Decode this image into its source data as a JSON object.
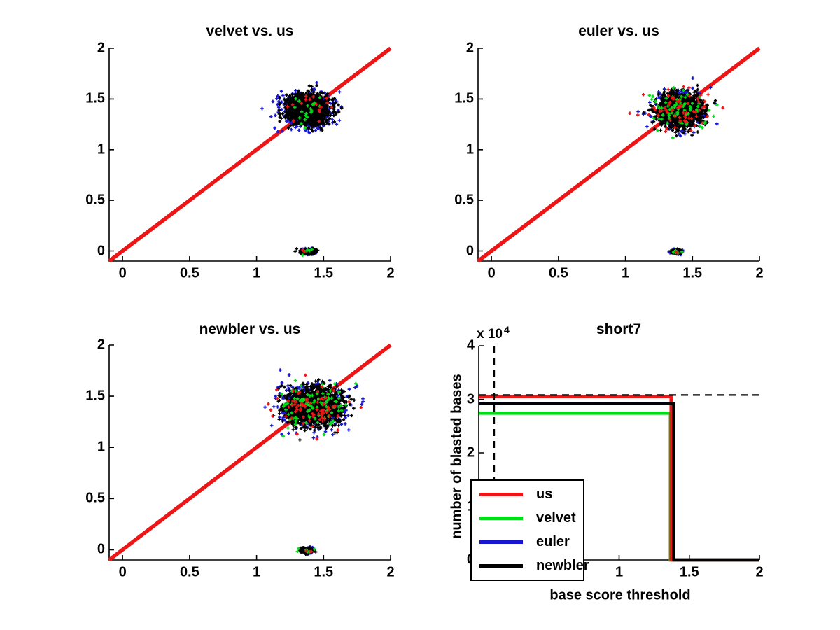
{
  "figure": {
    "background": "#ffffff"
  },
  "chart_data": [
    {
      "type": "scatter",
      "title": "velvet vs. us",
      "xlim": [
        -0.1,
        2
      ],
      "ylim": [
        -0.1,
        2
      ],
      "xtick_values": [
        0,
        0.5,
        1,
        1.5,
        2
      ],
      "xtick_labels": [
        "0",
        "0.5",
        "1",
        "1.5",
        "2"
      ],
      "ytick_values": [
        0,
        0.5,
        1,
        1.5,
        2
      ],
      "ytick_labels": [
        "0",
        "0.5",
        "1",
        "1.5",
        "2"
      ],
      "grid": false,
      "marker": "+",
      "identity_line": {
        "from": [
          -0.1,
          -0.1
        ],
        "to": [
          2,
          2
        ],
        "color": "#ed1515"
      },
      "clusters": [
        {
          "id": "main",
          "center": [
            1.38,
            1.4
          ],
          "layers": [
            {
              "color": "#1616d1",
              "n": 480,
              "sx": 0.1,
              "sy": 0.092
            },
            {
              "color": "#000000",
              "n": 1600,
              "sx": 0.075,
              "sy": 0.068
            },
            {
              "color": "#00dc16",
              "n": 20,
              "sx": 0.105,
              "sy": 0.095
            },
            {
              "color": "#ed1515",
              "n": 16,
              "sx": 0.105,
              "sy": 0.095
            }
          ]
        },
        {
          "id": "at-zero",
          "center": [
            1.385,
            -0.005
          ],
          "layers": [
            {
              "color": "#1616d1",
              "n": 80,
              "sx": 0.034,
              "sy": 0.015
            },
            {
              "color": "#000000",
              "n": 150,
              "sx": 0.029,
              "sy": 0.013
            },
            {
              "color": "#00dc16",
              "n": 6,
              "sx": 0.035,
              "sy": 0.015
            },
            {
              "color": "#ed1515",
              "n": 2,
              "sx": 0.03,
              "sy": 0.012
            }
          ]
        }
      ]
    },
    {
      "type": "scatter",
      "title": "euler vs. us",
      "xlim": [
        -0.1,
        2
      ],
      "ylim": [
        -0.1,
        2
      ],
      "xtick_values": [
        0,
        0.5,
        1,
        1.5,
        2
      ],
      "xtick_labels": [
        "0",
        "0.5",
        "1",
        "1.5",
        "2"
      ],
      "ytick_values": [
        0,
        0.5,
        1,
        1.5,
        2
      ],
      "ytick_labels": [
        "0",
        "0.5",
        "1",
        "1.5",
        "2"
      ],
      "grid": false,
      "marker": "+",
      "identity_line": {
        "from": [
          -0.1,
          -0.1
        ],
        "to": [
          2,
          2
        ],
        "color": "#ed1515"
      },
      "clusters": [
        {
          "id": "main",
          "center": [
            1.4,
            1.385
          ],
          "layers": [
            {
              "color": "#1616d1",
              "n": 430,
              "sx": 0.098,
              "sy": 0.09
            },
            {
              "color": "#000000",
              "n": 1650,
              "sx": 0.08,
              "sy": 0.072
            },
            {
              "color": "#00dc16",
              "n": 75,
              "sx": 0.115,
              "sy": 0.1
            },
            {
              "color": "#ed1515",
              "n": 65,
              "sx": 0.115,
              "sy": 0.1
            }
          ]
        },
        {
          "id": "at-zero",
          "center": [
            1.38,
            -0.005
          ],
          "layers": [
            {
              "color": "#1616d1",
              "n": 45,
              "sx": 0.022,
              "sy": 0.011
            },
            {
              "color": "#000000",
              "n": 95,
              "sx": 0.019,
              "sy": 0.01
            },
            {
              "color": "#00dc16",
              "n": 6,
              "sx": 0.024,
              "sy": 0.012
            },
            {
              "color": "#ed1515",
              "n": 2,
              "sx": 0.02,
              "sy": 0.01
            }
          ]
        }
      ]
    },
    {
      "type": "scatter",
      "title": "newbler vs. us",
      "xlim": [
        -0.1,
        2
      ],
      "ylim": [
        -0.1,
        2
      ],
      "xtick_values": [
        0,
        0.5,
        1,
        1.5,
        2
      ],
      "xtick_labels": [
        "0",
        "0.5",
        "1",
        "1.5",
        "2"
      ],
      "ytick_values": [
        0,
        0.5,
        1,
        1.5,
        2
      ],
      "ytick_labels": [
        "0",
        "0.5",
        "1",
        "1.5",
        "2"
      ],
      "grid": false,
      "marker": "+",
      "identity_line": {
        "from": [
          -0.1,
          -0.1
        ],
        "to": [
          2,
          2
        ],
        "color": "#ed1515"
      },
      "clusters": [
        {
          "id": "main",
          "center": [
            1.42,
            1.4
          ],
          "layers": [
            {
              "color": "#1616d1",
              "n": 560,
              "sx": 0.122,
              "sy": 0.105
            },
            {
              "color": "#000000",
              "n": 2000,
              "sx": 0.095,
              "sy": 0.082
            },
            {
              "color": "#00dc16",
              "n": 95,
              "sx": 0.135,
              "sy": 0.115
            },
            {
              "color": "#ed1515",
              "n": 75,
              "sx": 0.135,
              "sy": 0.115
            }
          ]
        },
        {
          "id": "at-zero",
          "center": [
            1.38,
            -0.005
          ],
          "layers": [
            {
              "color": "#1616d1",
              "n": 60,
              "sx": 0.028,
              "sy": 0.015
            },
            {
              "color": "#000000",
              "n": 130,
              "sx": 0.025,
              "sy": 0.013
            },
            {
              "color": "#00dc16",
              "n": 6,
              "sx": 0.03,
              "sy": 0.015
            },
            {
              "color": "#ed1515",
              "n": 3,
              "sx": 0.025,
              "sy": 0.012
            }
          ]
        }
      ]
    },
    {
      "type": "line",
      "title": "short7",
      "xlabel": "base score threshold",
      "ylabel": "number of blasted bases",
      "scale_label": {
        "base": "x 10",
        "exp": "4"
      },
      "xlim": [
        0,
        2
      ],
      "ylim": [
        0,
        4
      ],
      "xtick_values": [
        0,
        0.5,
        1,
        1.5,
        2
      ],
      "xtick_labels": [
        "0",
        "0.5",
        "1",
        "1.5",
        "2"
      ],
      "ytick_values": [
        0,
        1,
        2,
        3,
        4
      ],
      "ytick_labels": [
        "0",
        "1",
        "2",
        "3",
        "4"
      ],
      "grid": false,
      "y_unit_multiplier": 10000,
      "series": [
        {
          "name": "us",
          "color": "#ed1515",
          "level": 3.05,
          "drop_x": 1.37
        },
        {
          "name": "velvet",
          "color": "#00dc16",
          "level": 2.74,
          "drop_x": 1.365
        },
        {
          "name": "euler",
          "color": "#1616d1",
          "level": 2.92,
          "drop_x": 1.385
        },
        {
          "name": "newbler",
          "color": "#000000",
          "level": 2.92,
          "drop_x": 1.39
        }
      ],
      "draw_order": [
        2,
        1,
        0,
        3
      ],
      "guides": {
        "horizontal_y": 3.08,
        "vertical_x": 0.11,
        "style": "dashed",
        "color": "#000000"
      },
      "legend": {
        "position": "lower left",
        "items": [
          "us",
          "velvet",
          "euler",
          "newbler"
        ]
      }
    }
  ]
}
